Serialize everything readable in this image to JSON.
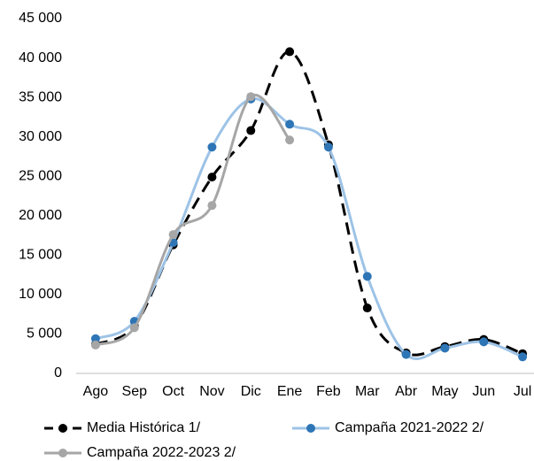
{
  "chart_data": {
    "type": "line",
    "categories": [
      "Ago",
      "Sep",
      "Oct",
      "Nov",
      "Dic",
      "Ene",
      "Feb",
      "Mar",
      "Abr",
      "May",
      "Jun",
      "Jul"
    ],
    "series": [
      {
        "name": "Media Histórica 1/",
        "color": "#000000",
        "marker_color": "#000000",
        "dashed": true,
        "values": [
          3700,
          6000,
          16300,
          24900,
          30800,
          40800,
          29000,
          8300,
          2600,
          3400,
          4300,
          2500
        ]
      },
      {
        "name": "Campaña 2021-2022 2/",
        "color": "#9dc3e6",
        "marker_color": "#2e75b6",
        "dashed": false,
        "values": [
          4400,
          6600,
          16600,
          28700,
          34800,
          31600,
          28700,
          12300,
          2400,
          3200,
          4000,
          2100
        ]
      },
      {
        "name": "Campaña 2022-2023 2/",
        "color": "#a6a6a6",
        "marker_color": "#a6a6a6",
        "dashed": false,
        "values": [
          3600,
          5800,
          17600,
          21300,
          35100,
          29600,
          null,
          null,
          null,
          null,
          null,
          null
        ]
      }
    ],
    "ylim": [
      0,
      45000
    ],
    "yticks": [
      0,
      {
        "value": 5000,
        "label": "5 000"
      },
      {
        "value": 10000,
        "label": "10 000"
      },
      {
        "value": 15000,
        "label": "15 000"
      },
      {
        "value": 20000,
        "label": "20 000"
      },
      {
        "value": 25000,
        "label": "25 000"
      },
      {
        "value": 30000,
        "label": "30 000"
      },
      {
        "value": 35000,
        "label": "35 000"
      },
      {
        "value": 40000,
        "label": "40 000"
      },
      {
        "value": 45000,
        "label": "45 000"
      }
    ],
    "grid": false
  }
}
